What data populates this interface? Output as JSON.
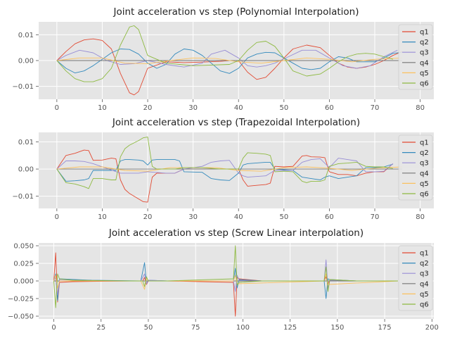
{
  "colors": [
    "#E24A33",
    "#348ABD",
    "#988ED5",
    "#777777",
    "#FBC15E",
    "#8EBA42"
  ],
  "chart_data": [
    {
      "type": "line",
      "title": "Joint acceleration vs step (Polynomial Interpolation)",
      "xlim": [
        -4,
        83
      ],
      "ylim": [
        -0.015,
        0.015
      ],
      "xticks": [
        0,
        10,
        20,
        30,
        40,
        50,
        60,
        70,
        80
      ],
      "xtick_labels": [
        "0",
        "10",
        "20",
        "30",
        "40",
        "50",
        "60",
        "70",
        "80"
      ],
      "yticks": [
        -0.01,
        0,
        0.01
      ],
      "ytick_labels": [
        "−0.01",
        "0.00",
        "0.01"
      ],
      "grid": true,
      "legend": "right",
      "series": [
        {
          "name": "q1",
          "x": [
            0,
            2,
            4,
            6,
            8,
            10,
            12,
            14,
            16,
            17,
            18,
            20,
            24,
            28,
            32,
            36,
            38,
            40,
            42,
            44,
            46,
            48,
            50,
            52,
            55,
            58,
            60,
            62,
            64,
            66,
            68,
            70,
            72,
            74,
            76
          ],
          "y": [
            0,
            0.0035,
            0.0065,
            0.008,
            0.0084,
            0.0078,
            0.0045,
            -0.005,
            -0.0125,
            -0.0133,
            -0.012,
            -0.003,
            -0.0005,
            -0.0008,
            -0.0006,
            -0.0003,
            0,
            0,
            -0.0045,
            -0.0073,
            -0.0065,
            -0.003,
            0.001,
            0.0045,
            0.006,
            0.005,
            0.002,
            -0.001,
            -0.0025,
            -0.003,
            -0.0025,
            -0.0015,
            0.0,
            0.002,
            0.0035
          ]
        },
        {
          "name": "q2",
          "x": [
            0,
            2,
            4,
            6,
            8,
            10,
            12,
            14,
            16,
            18,
            20,
            22,
            24,
            26,
            28,
            30,
            32,
            34,
            36,
            38,
            40,
            42,
            44,
            46,
            48,
            50,
            52,
            54,
            56,
            58,
            60,
            62,
            64,
            66,
            68,
            70,
            72,
            74,
            76
          ],
          "y": [
            0,
            -0.003,
            -0.0048,
            -0.004,
            -0.002,
            0.0005,
            0.003,
            0.0045,
            0.0043,
            0.0025,
            -0.001,
            -0.003,
            -0.0015,
            0.0025,
            0.0045,
            0.004,
            0.002,
            -0.001,
            -0.004,
            -0.005,
            -0.003,
            0.001,
            0.0025,
            0.0032,
            0.003,
            0.001,
            -0.001,
            -0.003,
            -0.0035,
            -0.003,
            -0.0005,
            0.0015,
            0.001,
            -0.0005,
            -0.0005,
            -0.0005,
            0.001,
            0.0028,
            0.0032
          ]
        },
        {
          "name": "q3",
          "x": [
            0,
            2,
            5,
            8,
            11,
            14,
            17,
            20,
            24,
            28,
            32,
            34,
            37,
            40,
            42,
            44,
            46,
            48,
            51,
            54,
            57,
            60,
            63,
            66,
            69,
            72,
            75
          ],
          "y": [
            0,
            0.002,
            0.004,
            0.003,
            0.0,
            -0.0015,
            -0.0012,
            0.0,
            -0.0015,
            -0.0025,
            -0.001,
            0.0025,
            0.004,
            0.001,
            -0.002,
            -0.0025,
            -0.002,
            -0.001,
            0.0015,
            0.004,
            0.004,
            0.001,
            -0.002,
            -0.003,
            -0.002,
            0.0015,
            0.004
          ]
        },
        {
          "name": "q4",
          "x": [
            0,
            20,
            40,
            60,
            76
          ],
          "y": [
            0,
            0,
            0,
            0,
            0
          ]
        },
        {
          "name": "q5",
          "x": [
            0,
            5,
            10,
            15,
            20,
            25,
            30,
            35,
            40,
            45,
            50,
            55,
            60,
            65,
            70,
            76
          ],
          "y": [
            0,
            0.001,
            0.001,
            -0.001,
            -0.0012,
            0.0,
            0.001,
            0.0008,
            -0.0005,
            -0.001,
            0.0,
            0.001,
            0.0005,
            -0.0005,
            0.0005,
            0.001
          ]
        },
        {
          "name": "q6",
          "x": [
            0,
            2,
            4,
            6,
            8,
            10,
            12,
            14,
            16,
            17,
            18,
            20,
            24,
            30,
            38,
            40,
            42,
            44,
            46,
            48,
            50,
            52,
            55,
            58,
            60,
            62,
            64,
            66,
            68,
            70,
            72,
            74
          ],
          "y": [
            0,
            -0.004,
            -0.007,
            -0.0082,
            -0.0082,
            -0.007,
            -0.003,
            0.006,
            0.013,
            0.0135,
            0.012,
            0.002,
            -0.001,
            -0.002,
            -0.0015,
            0,
            0.004,
            0.007,
            0.0075,
            0.0055,
            0.001,
            -0.004,
            -0.006,
            -0.0052,
            -0.003,
            -0.0005,
            0.0015,
            0.0025,
            0.0028,
            0.0025,
            0.0015,
            0.0005
          ]
        }
      ]
    },
    {
      "type": "line",
      "title": "Joint acceleration vs step (Trapezoidal Interpolation)",
      "xlim": [
        -4,
        83
      ],
      "ylim": [
        -0.0145,
        0.0135
      ],
      "xticks": [
        0,
        10,
        20,
        30,
        40,
        50,
        60,
        70,
        80
      ],
      "xtick_labels": [
        "0",
        "10",
        "20",
        "30",
        "40",
        "50",
        "60",
        "70",
        "80"
      ],
      "yticks": [
        -0.01,
        0,
        0.01
      ],
      "ytick_labels": [
        "−0.01",
        "0.00",
        "0.01"
      ],
      "grid": true,
      "legend": "right",
      "series": [
        {
          "name": "q1",
          "x": [
            0,
            2,
            4,
            6,
            7,
            8,
            10,
            12,
            13,
            14,
            15,
            16,
            18,
            19,
            20,
            21,
            22,
            26,
            28,
            32,
            36,
            40,
            41,
            42,
            44,
            46,
            47,
            48,
            50,
            52,
            54,
            55,
            56,
            58,
            59,
            60,
            62,
            64,
            66,
            68,
            70,
            72,
            74
          ],
          "y": [
            0,
            0.005,
            0.0058,
            0.007,
            0.0068,
            0.0032,
            0.0033,
            0.004,
            0.0038,
            -0.004,
            -0.0075,
            -0.009,
            -0.011,
            -0.012,
            -0.0122,
            -0.003,
            -0.0015,
            -0.0015,
            0.0,
            0.0,
            0.0,
            0.0,
            -0.004,
            -0.0063,
            -0.006,
            -0.0057,
            -0.0052,
            0.001,
            0.0008,
            0.001,
            0.0048,
            0.005,
            0.0045,
            0.0044,
            0.0042,
            -0.001,
            -0.002,
            -0.002,
            -0.0025,
            -0.0015,
            -0.001,
            -0.001,
            0.002
          ]
        },
        {
          "name": "q2",
          "x": [
            0,
            2,
            4,
            6,
            7,
            8,
            10,
            13,
            14,
            15,
            16,
            18,
            19,
            20,
            21,
            22,
            26,
            27,
            28,
            32,
            34,
            36,
            38,
            40,
            41,
            42,
            46,
            47,
            48,
            52,
            54,
            56,
            58,
            59,
            60,
            62,
            64,
            66,
            68,
            70,
            72,
            74
          ],
          "y": [
            0,
            -0.0045,
            -0.0043,
            -0.004,
            -0.0035,
            -0.0005,
            -0.0005,
            -0.0005,
            0.003,
            0.0035,
            0.0035,
            0.0033,
            0.003,
            0.0015,
            0.0033,
            0.0035,
            0.0035,
            0.003,
            -0.001,
            -0.0012,
            -0.0035,
            -0.004,
            -0.0042,
            -0.0015,
            0.0015,
            0.002,
            0.0025,
            0.0025,
            0.0,
            -0.0005,
            -0.003,
            -0.0035,
            -0.004,
            -0.003,
            -0.0025,
            -0.0035,
            -0.003,
            -0.0025,
            0.0005,
            0.0005,
            0.0008,
            0.0018
          ]
        },
        {
          "name": "q3",
          "x": [
            0,
            2,
            4,
            6,
            8,
            14,
            18,
            20,
            24,
            26,
            28,
            32,
            34,
            36,
            38,
            40,
            41,
            42,
            46,
            48,
            52,
            54,
            56,
            58,
            60,
            62,
            64,
            66,
            68,
            70,
            72,
            74
          ],
          "y": [
            0,
            0.003,
            0.003,
            0.0028,
            0.002,
            -0.0015,
            -0.0015,
            -0.001,
            -0.0015,
            -0.0015,
            0.0,
            0.001,
            0.0025,
            0.003,
            0.0032,
            -0.0015,
            -0.0025,
            -0.003,
            -0.0025,
            -0.0005,
            -0.0005,
            0.0025,
            0.0035,
            0.0038,
            0.0005,
            0.004,
            0.0035,
            0.003,
            -0.001,
            -0.001,
            -0.0008,
            0.002
          ]
        },
        {
          "name": "q4",
          "x": [
            0,
            20,
            40,
            60,
            76
          ],
          "y": [
            0,
            0,
            0,
            0,
            0
          ]
        },
        {
          "name": "q5",
          "x": [
            0,
            5,
            10,
            15,
            20,
            25,
            30,
            35,
            40,
            45,
            50,
            55,
            60,
            65,
            70,
            76
          ],
          "y": [
            0,
            0.0008,
            0.0008,
            -0.0005,
            -0.0008,
            0.0005,
            0.0005,
            0.0005,
            -0.0005,
            -0.0008,
            0.0005,
            0.0008,
            0.0003,
            -0.0005,
            0.0003,
            0.0008
          ]
        },
        {
          "name": "q6",
          "x": [
            0,
            2,
            4,
            6,
            7,
            8,
            10,
            12,
            13,
            14,
            15,
            16,
            18,
            19,
            20,
            21,
            22,
            26,
            28,
            32,
            36,
            40,
            41,
            42,
            44,
            46,
            47,
            48,
            50,
            52,
            54,
            55,
            56,
            58,
            59,
            60,
            62,
            64,
            66,
            68,
            70,
            72,
            74
          ],
          "y": [
            0,
            -0.005,
            -0.0055,
            -0.0065,
            -0.0072,
            -0.0035,
            -0.0035,
            -0.004,
            -0.004,
            0.0045,
            0.0075,
            0.0088,
            0.0105,
            0.0115,
            0.0118,
            0.001,
            0.0,
            0.0,
            0.0005,
            0.0005,
            0.0,
            0.0,
            0.004,
            0.006,
            0.0058,
            0.0055,
            0.005,
            -0.001,
            -0.0008,
            -0.001,
            -0.0045,
            -0.005,
            -0.0045,
            -0.0045,
            -0.004,
            0.001,
            0.002,
            0.0022,
            0.0025,
            0.001,
            0.0008,
            0.0008,
            0.0002
          ]
        }
      ]
    },
    {
      "type": "line",
      "title": "Joint acceleration vs step (Screw Linear interpolation)",
      "xlim": [
        -8,
        201
      ],
      "ylim": [
        -0.054,
        0.054
      ],
      "xticks": [
        0,
        25,
        50,
        75,
        100,
        125,
        150,
        175,
        200
      ],
      "xtick_labels": [
        "0",
        "25",
        "50",
        "75",
        "100",
        "125",
        "150",
        "175",
        "200"
      ],
      "yticks": [
        -0.05,
        -0.025,
        0,
        0.025,
        0.05
      ],
      "ytick_labels": [
        "−0.050",
        "−0.025",
        "0.000",
        "0.025",
        "0.050"
      ],
      "grid": true,
      "legend": "right",
      "series": [
        {
          "name": "q1",
          "x": [
            0,
            1,
            2,
            3,
            10,
            40,
            47,
            48,
            49,
            50,
            60,
            95,
            96,
            97,
            98,
            110,
            143,
            144,
            145,
            146,
            160,
            182
          ],
          "y": [
            0,
            0.04,
            -0.03,
            -0.002,
            -0.001,
            0,
            0,
            0.005,
            -0.005,
            0,
            0,
            -0.002,
            -0.05,
            0.005,
            0.003,
            0,
            0,
            0.006,
            -0.004,
            0.001,
            0,
            0
          ]
        },
        {
          "name": "q2",
          "x": [
            0,
            1,
            2,
            3,
            20,
            46,
            48,
            49,
            50,
            60,
            95,
            96,
            97,
            98,
            110,
            143,
            144,
            145,
            146,
            160,
            182
          ],
          "y": [
            0,
            0.01,
            -0.028,
            0.003,
            0.001,
            0,
            0.026,
            -0.004,
            0.001,
            0,
            0,
            0.018,
            -0.01,
            0.002,
            0,
            0,
            -0.025,
            0.003,
            0.002,
            0,
            0
          ]
        },
        {
          "name": "q3",
          "x": [
            0,
            1,
            2,
            3,
            20,
            46,
            48,
            49,
            50,
            60,
            95,
            96,
            97,
            98,
            110,
            143,
            144,
            145,
            146,
            160,
            182
          ],
          "y": [
            0,
            0.005,
            -0.02,
            0.002,
            0,
            0,
            0.01,
            -0.004,
            0.001,
            0,
            0,
            -0.015,
            0.008,
            0.001,
            0,
            0,
            0.03,
            -0.01,
            0.001,
            0,
            0
          ]
        },
        {
          "name": "q4",
          "x": [
            0,
            50,
            100,
            150,
            182
          ],
          "y": [
            0,
            0,
            0,
            0,
            0
          ]
        },
        {
          "name": "q5",
          "x": [
            0,
            1,
            2,
            3,
            46,
            48,
            49,
            50,
            95,
            96,
            97,
            143,
            144,
            145,
            182
          ],
          "y": [
            0,
            0.008,
            -0.01,
            0,
            0,
            -0.012,
            0.004,
            0,
            0,
            0.008,
            -0.004,
            0,
            0.01,
            -0.005,
            0
          ]
        },
        {
          "name": "q6",
          "x": [
            0,
            1,
            2,
            3,
            10,
            40,
            47,
            48,
            49,
            50,
            60,
            95,
            96,
            97,
            98,
            110,
            143,
            144,
            145,
            146,
            160,
            182
          ],
          "y": [
            0,
            -0.038,
            0.01,
            0.003,
            0.001,
            0,
            0,
            -0.008,
            0.006,
            0,
            0,
            0.003,
            0.05,
            -0.006,
            -0.002,
            0,
            0,
            0.02,
            -0.015,
            0.002,
            0,
            0
          ]
        }
      ]
    }
  ]
}
